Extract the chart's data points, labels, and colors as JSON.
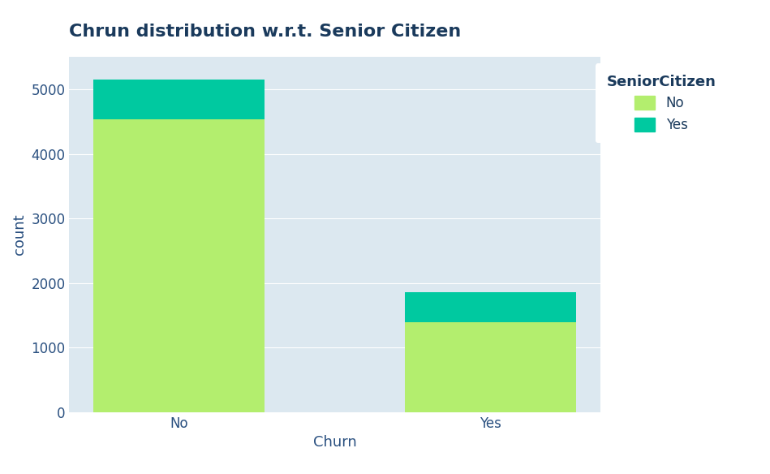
{
  "title": "Chrun distribution w.r.t. Senior Citizen",
  "xlabel": "Churn",
  "ylabel": "count",
  "categories": [
    "No",
    "Yes"
  ],
  "no_values": [
    4530,
    1390
  ],
  "yes_values": [
    620,
    470
  ],
  "color_no": "#b3ee6e",
  "color_yes": "#00c9a0",
  "legend_title": "SeniorCitizen",
  "legend_labels": [
    "No",
    "Yes"
  ],
  "fig_bg": "#ffffff",
  "plot_bg": "#dce8f0",
  "title_color": "#1a3a5c",
  "axis_label_color": "#2a5080",
  "tick_color": "#2a5080",
  "ylim": [
    0,
    5500
  ],
  "yticks": [
    0,
    1000,
    2000,
    3000,
    4000,
    5000
  ],
  "bar_width": 0.55,
  "title_fontsize": 16,
  "label_fontsize": 12,
  "grid_color": "#ffffff"
}
